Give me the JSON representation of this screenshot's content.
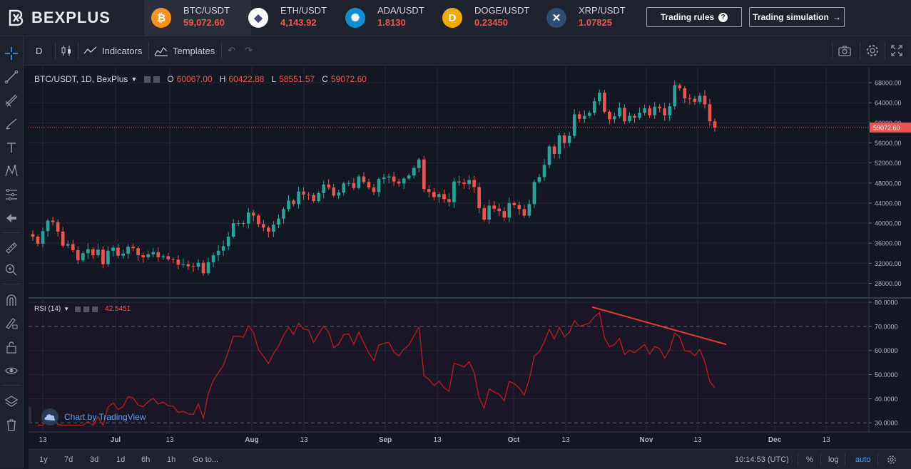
{
  "brand": {
    "name": "BEXPLUS"
  },
  "tickers": [
    {
      "symbol": "BTC/USDT",
      "price": "59,072.60",
      "icon": "bitcoin-icon",
      "color": "#f7931a",
      "glyph": "₿"
    },
    {
      "symbol": "ETH/USDT",
      "price": "4,143.92",
      "icon": "ethereum-icon",
      "color": "#ffffff",
      "glyph": "◆"
    },
    {
      "symbol": "ADA/USDT",
      "price": "1.8130",
      "icon": "cardano-icon",
      "color": "#0d8fd6",
      "glyph": "✺"
    },
    {
      "symbol": "DOGE/USDT",
      "price": "0.23450",
      "icon": "dogecoin-icon",
      "color": "#f2a900",
      "glyph": "D"
    },
    {
      "symbol": "XRP/USDT",
      "price": "1.07825",
      "icon": "xrp-icon",
      "color": "#2e4b71",
      "glyph": "✕"
    }
  ],
  "buttons": {
    "trading_rules": "Trading rules",
    "trading_simulation": "Trading simulation"
  },
  "toolbar": {
    "interval": "D",
    "indicators": "Indicators",
    "templates": "Templates"
  },
  "legend": {
    "title": "BTC/USDT, 1D, BexPlus",
    "o_label": "O",
    "o_value": "60067.00",
    "h_label": "H",
    "h_value": "60422.88",
    "l_label": "L",
    "l_value": "58551.57",
    "c_label": "C",
    "c_value": "59072.60"
  },
  "rsi_legend": {
    "title": "RSI (14)",
    "value": "42.5451"
  },
  "watermark": "Chart by TradingView",
  "colors": {
    "up": "#26a69a",
    "down": "#ef5350",
    "rsi": "#b71c1c",
    "accent": "#2962ff"
  },
  "chart_data": {
    "type": "candlestick",
    "price_axis": {
      "ticks": [
        "68000.00",
        "64000.00",
        "60000.00",
        "56000.00",
        "52000.00",
        "48000.00",
        "44000.00",
        "40000.00",
        "36000.00",
        "32000.00",
        "28000.00"
      ],
      "range": [
        26500,
        70000
      ],
      "last_price": "59072.60"
    },
    "rsi_axis": {
      "ticks": [
        "80.0000",
        "70.0000",
        "60.0000",
        "50.0000",
        "40.0000",
        "30.0000"
      ],
      "range": [
        28,
        80
      ],
      "bands": [
        30,
        70
      ]
    },
    "time_axis": {
      "ticks": [
        "13",
        "Jul",
        "13",
        "Aug",
        "13",
        "Sep",
        "13",
        "Oct",
        "13",
        "Nov",
        "13",
        "Dec",
        "13"
      ]
    },
    "closes": [
      37300,
      35900,
      38400,
      40500,
      40200,
      38300,
      35500,
      35800,
      34600,
      32600,
      34000,
      34800,
      33600,
      34700,
      31800,
      34500,
      35100,
      33500,
      33900,
      35300,
      35000,
      33600,
      33200,
      33800,
      34200,
      33200,
      33400,
      32800,
      32700,
      31700,
      31800,
      31400,
      31300,
      32100,
      30000,
      32200,
      33600,
      34500,
      35400,
      37300,
      40000,
      40000,
      39900,
      42100,
      41500,
      39800,
      39100,
      38300,
      39700,
      40900,
      42800,
      44500,
      43800,
      46300,
      45700,
      45600,
      44400,
      46000,
      47700,
      47100,
      45500,
      46100,
      47900,
      48000,
      47000,
      49300,
      48200,
      47100,
      46200,
      48800,
      49100,
      49300,
      48300,
      47900,
      48900,
      49500,
      51000,
      52700,
      46800,
      46200,
      45200,
      45800,
      44800,
      44200,
      48300,
      48100,
      47800,
      48600,
      47200,
      43000,
      40700,
      43500,
      42900,
      42400,
      41100,
      44000,
      43600,
      42800,
      41500,
      43800,
      48200,
      49200,
      51600,
      55300,
      53800,
      57500,
      56000,
      57400,
      61700,
      60800,
      61400,
      62000,
      64300,
      66000,
      62200,
      60700,
      61300,
      63000,
      60300,
      61400,
      61000,
      62000,
      62900,
      61500,
      63200,
      62900,
      61500,
      63300,
      67500,
      66900,
      64900,
      64800,
      64200,
      65400,
      63700,
      60300,
      59072
    ]
  },
  "time_buttons": [
    "1y",
    "7d",
    "3d",
    "1d",
    "6h",
    "1h",
    "Go to..."
  ],
  "status": {
    "clock": "10:14:53 (UTC)",
    "percent": "%",
    "log": "log",
    "auto": "auto"
  }
}
